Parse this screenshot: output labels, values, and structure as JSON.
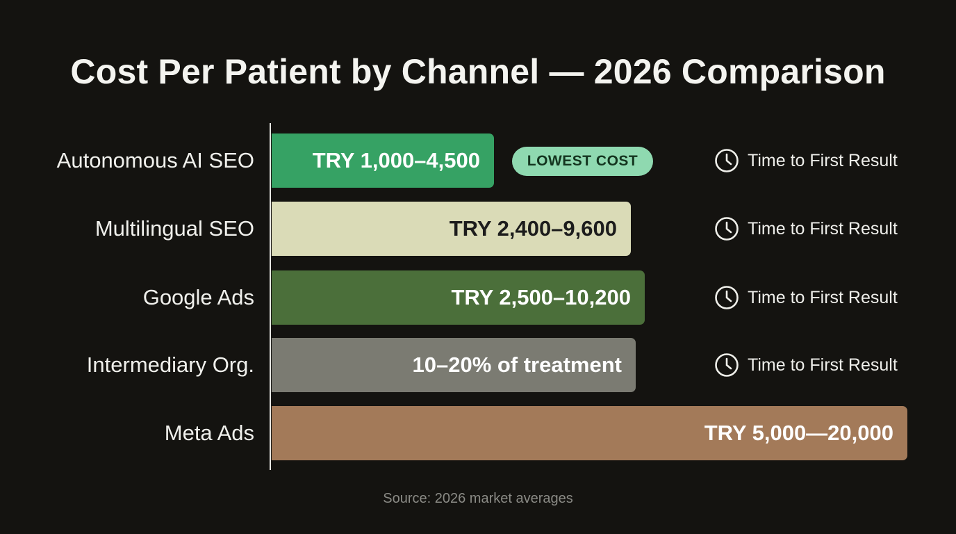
{
  "title": "Cost Per Patient by Channel — 2026 Comparison",
  "source": "Source: 2026 market averages",
  "badge": "LOWEST COST",
  "time_label": "Time to First Result",
  "chart_data": {
    "type": "bar",
    "orientation": "horizontal",
    "title": "Cost Per Patient by Channel — 2026 Comparison",
    "categories": [
      "Autonomous AI SEO",
      "Multilingual SEO",
      "Google Ads",
      "Intermediary Org.",
      "Meta Ads"
    ],
    "value_labels": [
      "TRY 1,000–4,500",
      "TRY 2,400–9,600",
      "TRY 2,500–10,200",
      "10–20% of treatment",
      "TRY 5,000—20,000"
    ],
    "relative_length": [
      0.35,
      0.565,
      0.587,
      0.573,
      1.0
    ],
    "colors": [
      "#36a264",
      "#dadbb7",
      "#4b6f3a",
      "#7b7b72",
      "#a37a59"
    ],
    "label_colors": [
      "#ffffff",
      "#1c1c1c",
      "#ffffff",
      "#ffffff",
      "#ffffff"
    ],
    "annotations": [
      "LOWEST COST",
      "Time to First Result"
    ]
  }
}
